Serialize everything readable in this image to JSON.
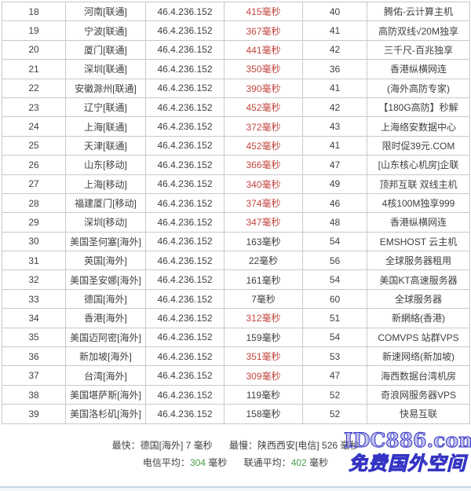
{
  "colors": {
    "border": "#c9c9c9",
    "text_dark": "#404040",
    "green": "#4a9e4a",
    "red_slow": "#c2453f",
    "watermark_blue": "#3434c4",
    "bottom_line": "#c9d8e8"
  },
  "table": {
    "rows": [
      {
        "index": "18",
        "location": "河南[联通]",
        "ip": "46.4.236.152",
        "time": "415毫秒",
        "slow": true,
        "score": "40",
        "ad": "腾佑-云计算主机"
      },
      {
        "index": "19",
        "location": "宁波[联通]",
        "ip": "46.4.236.152",
        "time": "367毫秒",
        "slow": true,
        "score": "41",
        "ad": "高防双线√20M独享"
      },
      {
        "index": "20",
        "location": "厦门[联通]",
        "ip": "46.4.236.152",
        "time": "441毫秒",
        "slow": true,
        "score": "42",
        "ad": "三千尺-百兆独享"
      },
      {
        "index": "21",
        "location": "深圳[联通]",
        "ip": "46.4.236.152",
        "time": "350毫秒",
        "slow": true,
        "score": "36",
        "ad": "香港纵横网连"
      },
      {
        "index": "22",
        "location": "安徽滁州[联通]",
        "ip": "46.4.236.152",
        "time": "390毫秒",
        "slow": true,
        "score": "41",
        "ad": "(海外高防专家)"
      },
      {
        "index": "23",
        "location": "辽宁[联通]",
        "ip": "46.4.236.152",
        "time": "452毫秒",
        "slow": true,
        "score": "42",
        "ad": "【180G高防】秒解"
      },
      {
        "index": "24",
        "location": "上海[联通]",
        "ip": "46.4.236.152",
        "time": "372毫秒",
        "slow": true,
        "score": "43",
        "ad": "上海络安数据中心"
      },
      {
        "index": "25",
        "location": "天津[联通]",
        "ip": "46.4.236.152",
        "time": "452毫秒",
        "slow": true,
        "score": "41",
        "ad": "限时促39元.COM"
      },
      {
        "index": "26",
        "location": "山东[移动]",
        "ip": "46.4.236.152",
        "time": "366毫秒",
        "slow": true,
        "score": "47",
        "ad": "[山东核心机房]企联"
      },
      {
        "index": "27",
        "location": "上海[移动]",
        "ip": "46.4.236.152",
        "time": "340毫秒",
        "slow": true,
        "score": "49",
        "ad": "顶邦互联 双线主机"
      },
      {
        "index": "28",
        "location": "福建厦门[移动]",
        "ip": "46.4.236.152",
        "time": "374毫秒",
        "slow": true,
        "score": "46",
        "ad": "4核100M独享999"
      },
      {
        "index": "29",
        "location": "深圳[移动]",
        "ip": "46.4.236.152",
        "time": "347毫秒",
        "slow": true,
        "score": "48",
        "ad": "香港纵横网连"
      },
      {
        "index": "30",
        "location": "美国圣何塞[海外]",
        "ip": "46.4.236.152",
        "time": "163毫秒",
        "slow": false,
        "score": "54",
        "ad": "EMSHOST 云主机"
      },
      {
        "index": "31",
        "location": "英国[海外]",
        "ip": "46.4.236.152",
        "time": "22毫秒",
        "slow": false,
        "score": "56",
        "ad": "全球服务器租用"
      },
      {
        "index": "32",
        "location": "美国圣安娜[海外]",
        "ip": "46.4.236.152",
        "time": "161毫秒",
        "slow": false,
        "score": "54",
        "ad": "美国KT高速服务器"
      },
      {
        "index": "33",
        "location": "德国[海外]",
        "ip": "46.4.236.152",
        "time": "7毫秒",
        "slow": false,
        "score": "60",
        "ad": "全球服务器"
      },
      {
        "index": "34",
        "location": "香港[海外]",
        "ip": "46.4.236.152",
        "time": "312毫秒",
        "slow": true,
        "score": "51",
        "ad": "新網絡(香港)"
      },
      {
        "index": "35",
        "location": "美国迈阿密[海外]",
        "ip": "46.4.236.152",
        "time": "159毫秒",
        "slow": false,
        "score": "54",
        "ad": "COMVPS 站群VPS"
      },
      {
        "index": "36",
        "location": "新加坡[海外]",
        "ip": "46.4.236.152",
        "time": "351毫秒",
        "slow": true,
        "score": "53",
        "ad": "新速网络(新加坡)"
      },
      {
        "index": "37",
        "location": "台湾[海外]",
        "ip": "46.4.236.152",
        "time": "309毫秒",
        "slow": true,
        "score": "47",
        "ad": "海西数据台湾机房"
      },
      {
        "index": "38",
        "location": "美国堪萨斯[海外]",
        "ip": "46.4.236.152",
        "time": "119毫秒",
        "slow": false,
        "score": "52",
        "ad": "奇浪网服务器VPS"
      },
      {
        "index": "39",
        "location": "美国洛杉矶[海外]",
        "ip": "46.4.236.152",
        "time": "158毫秒",
        "slow": false,
        "score": "52",
        "ad": "快易互联"
      }
    ]
  },
  "footer": {
    "fastest_label": "最快：",
    "fastest_value": "德国[海外] 7 毫秒",
    "slowest_label": "最慢：",
    "slowest_value": "陕西西安[电信] 526 毫秒",
    "telecom_avg_label": "电信平均：",
    "telecom_avg_value": "304",
    "unicom_avg_label": "联通平均：",
    "unicom_avg_value": "402",
    "avg_unit": "毫秒"
  },
  "watermark": {
    "site": "IDC886.com",
    "slogan": "免费国外空间"
  }
}
